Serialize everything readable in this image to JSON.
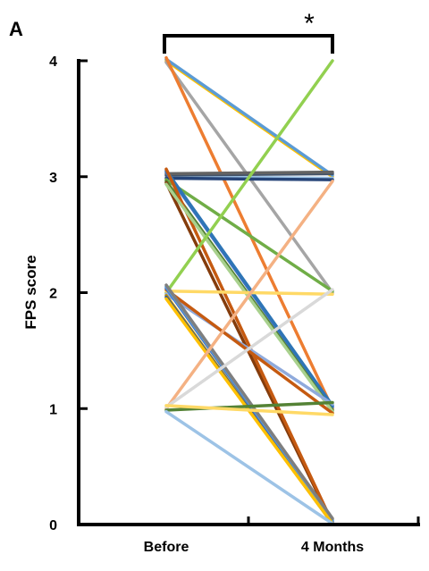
{
  "panel_label": "A",
  "significance_marker": "*",
  "chart_data": {
    "type": "line",
    "categories": [
      "Before",
      "4 Months"
    ],
    "ylabel": "FPS score",
    "xlabel": "",
    "ylim": [
      0,
      4
    ],
    "yticks": [
      "0",
      "1",
      "2",
      "3",
      "4"
    ],
    "grid": false,
    "legend": "none",
    "significance": {
      "between": [
        "Before",
        "4 Months"
      ],
      "marker": "*"
    },
    "series": [
      {
        "values": [
          4,
          3
        ],
        "color": "#FFC000"
      },
      {
        "values": [
          4,
          3
        ],
        "color": "#5B9BD5"
      },
      {
        "values": [
          4,
          2
        ],
        "color": "#A5A5A5"
      },
      {
        "values": [
          4,
          1
        ],
        "color": "#ED7D31"
      },
      {
        "values": [
          3,
          3
        ],
        "color": "#9DC3E6"
      },
      {
        "values": [
          3,
          3
        ],
        "color": "#44546A"
      },
      {
        "values": [
          3,
          3
        ],
        "color": "#264478"
      },
      {
        "values": [
          3,
          3
        ],
        "color": "#636363"
      },
      {
        "values": [
          3,
          2
        ],
        "color": "#70AD47"
      },
      {
        "values": [
          3,
          1
        ],
        "color": "#4472C4"
      },
      {
        "values": [
          3,
          1
        ],
        "color": "#548235"
      },
      {
        "values": [
          3,
          1
        ],
        "color": "#2E75B6"
      },
      {
        "values": [
          3,
          0
        ],
        "color": "#843C0C"
      },
      {
        "values": [
          3,
          0
        ],
        "color": "#C55A11"
      },
      {
        "values": [
          3,
          1
        ],
        "color": "#A9D18E"
      },
      {
        "values": [
          2,
          4
        ],
        "color": "#92D050"
      },
      {
        "values": [
          2,
          2
        ],
        "color": "#FFD966"
      },
      {
        "values": [
          2,
          1
        ],
        "color": "#8FAADC"
      },
      {
        "values": [
          2,
          1
        ],
        "color": "#C55A11"
      },
      {
        "values": [
          2,
          0
        ],
        "color": "#BF9000"
      },
      {
        "values": [
          2,
          0
        ],
        "color": "#4472C4"
      },
      {
        "values": [
          2,
          0
        ],
        "color": "#2F5597"
      },
      {
        "values": [
          2,
          0
        ],
        "color": "#5B9BD5"
      },
      {
        "values": [
          2,
          0
        ],
        "color": "#FFC000"
      },
      {
        "values": [
          2,
          0
        ],
        "color": "#7F7F7F"
      },
      {
        "values": [
          1,
          3
        ],
        "color": "#F4B183"
      },
      {
        "values": [
          1,
          2
        ],
        "color": "#D9D9D9"
      },
      {
        "values": [
          1,
          1
        ],
        "color": "#548235"
      },
      {
        "values": [
          1,
          1
        ],
        "color": "#FFD966"
      },
      {
        "values": [
          1,
          0
        ],
        "color": "#9DC3E6"
      }
    ]
  }
}
